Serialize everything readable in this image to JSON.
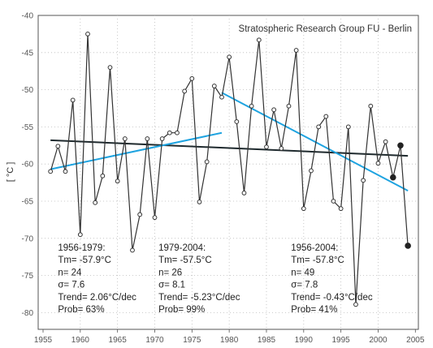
{
  "chart_data": {
    "type": "line",
    "title": "",
    "credit": "Stratospheric Research Group FU - Berlin",
    "xlabel": "",
    "ylabel": "[ °C ]",
    "xlim": [
      1955,
      2005
    ],
    "ylim": [
      -83,
      -40
    ],
    "xticks": [
      1955,
      1960,
      1965,
      1970,
      1975,
      1980,
      1985,
      1990,
      1995,
      2000,
      2005
    ],
    "yticks": [
      -40,
      -45,
      -50,
      -55,
      -60,
      -65,
      -70,
      -75,
      -80
    ],
    "grid": true,
    "series": [
      {
        "name": "",
        "color": "#333333",
        "x": [
          1956,
          1957,
          1958,
          1959,
          1960,
          1961,
          1962,
          1963,
          1964,
          1965,
          1966,
          1967,
          1968,
          1969,
          1970,
          1971,
          1972,
          1973,
          1974,
          1975,
          1976,
          1977,
          1978,
          1979,
          1980,
          1981,
          1982,
          1983,
          1984,
          1985,
          1986,
          1987,
          1988,
          1989,
          1990,
          1991,
          1992,
          1993,
          1994,
          1995,
          1996,
          1997,
          1998,
          1999,
          2000,
          2001,
          2002,
          2003,
          2004
        ],
        "y": [
          -61.0,
          -57.6,
          -61.0,
          -51.4,
          -69.5,
          -42.5,
          -65.2,
          -61.6,
          -47.0,
          -62.3,
          -56.6,
          -71.6,
          -66.8,
          -56.6,
          -67.2,
          -56.6,
          -55.8,
          -55.8,
          -50.2,
          -48.5,
          -65.1,
          -59.7,
          -49.5,
          -51.0,
          -45.6,
          -54.3,
          -63.9,
          -52.2,
          -43.3,
          -57.7,
          -52.7,
          -57.9,
          -52.2,
          -44.7,
          -66.0,
          -60.9,
          -55.0,
          -53.6,
          -65.0,
          -66.0,
          -55.0,
          -78.9,
          -62.2,
          -52.2,
          -59.9,
          -57.0,
          -61.8,
          -57.5,
          -71.0
        ]
      }
    ],
    "highlighted_points": [
      {
        "x": 2002,
        "y": -61.8
      },
      {
        "x": 2003,
        "y": -57.5
      },
      {
        "x": 2004,
        "y": -71.0
      }
    ],
    "trend_lines": [
      {
        "color": "#1f2a2e",
        "x": [
          1956,
          2004
        ],
        "y": [
          -56.8,
          -58.9
        ]
      },
      {
        "color": "#1ea3e0",
        "x": [
          1956,
          1979
        ],
        "y": [
          -60.7,
          -55.8
        ]
      },
      {
        "color": "#1ea3e0",
        "x": [
          1979,
          2004
        ],
        "y": [
          -50.4,
          -63.6
        ]
      }
    ],
    "annotations": [
      {
        "lines": [
          "1956-1979:",
          "Tm= -57.9°C",
          "n= 24",
          "σ= 7.6",
          "Trend= 2.06°C/dec",
          "Prob= 63%"
        ],
        "x": 1957,
        "y": -71.0
      },
      {
        "lines": [
          "1979-2004:",
          "Tm= -57.5°C",
          "n= 26",
          "σ= 8.1",
          "Trend= -5.23°C/dec",
          "Prob= 99%"
        ],
        "x": 1970.5,
        "y": -71.0
      },
      {
        "lines": [
          "1956-2004:",
          "Tm= -57.8°C",
          "n= 49",
          "σ= 7.8",
          "Trend= -0.43°C/dec",
          "Prob= 41%"
        ],
        "x": 1988.3,
        "y": -71.0
      }
    ]
  }
}
